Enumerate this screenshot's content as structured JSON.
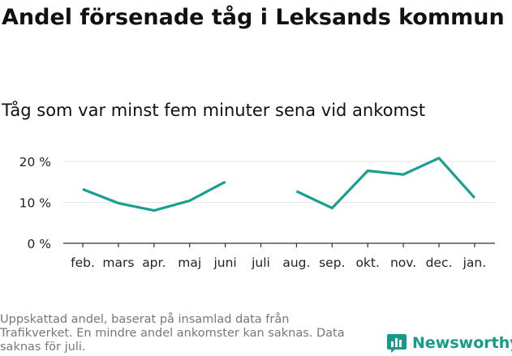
{
  "title": "Andel försenade tåg i Leksands kommun",
  "subtitle": "Tåg som var minst fem minuter sena vid ankomst",
  "footnote": "Uppskattad andel, baserat på insamlad data från Trafikverket. En mindre andel ankomster kan saknas. Data saknas för juli.",
  "brand": {
    "name": "Newsworthy",
    "icon": "bar-chart-logo-icon"
  },
  "colors": {
    "line": "#1a9e8f",
    "grid": "#e6e6e6",
    "axis": "#333333",
    "brand": "#159a8c"
  },
  "chart_data": {
    "type": "line",
    "categories": [
      "feb.",
      "mars",
      "apr.",
      "maj",
      "juni",
      "juli",
      "aug.",
      "sep.",
      "okt.",
      "nov.",
      "dec.",
      "jan."
    ],
    "series": [
      {
        "values": [
          13.2,
          9.8,
          8.0,
          10.4,
          15.0,
          null,
          12.7,
          8.6,
          17.7,
          16.8,
          20.8,
          11.1
        ]
      }
    ],
    "yticks": [
      0,
      10,
      20
    ],
    "ytick_labels": [
      "0 %",
      "10 %",
      "20 %"
    ],
    "ylim": [
      0,
      22
    ],
    "grid": true,
    "xlabel": "",
    "ylabel": ""
  }
}
